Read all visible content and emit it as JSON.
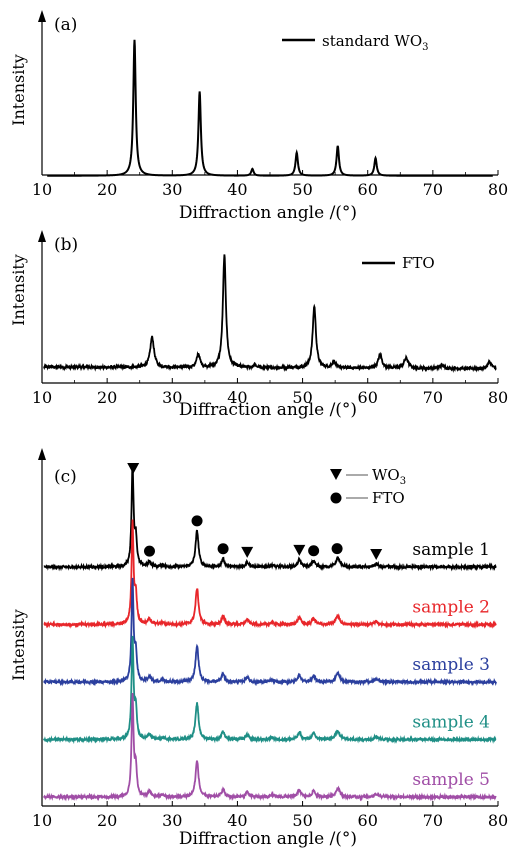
{
  "chart_data": [
    {
      "type": "line",
      "panel_label": "(a)",
      "ylabel": "Intensity",
      "xlabel": "Diffraction angle /(°)",
      "xlim": [
        10,
        80
      ],
      "xticks": [
        10,
        20,
        30,
        40,
        50,
        60,
        70,
        80
      ],
      "legend": {
        "label_prefix": "standard WO",
        "label_sub": "3",
        "placement": "top-right"
      },
      "series": [
        {
          "color": "#000000",
          "baseline": 0.05,
          "noise": 0,
          "peaks": [
            {
              "x": 24.2,
              "h": 1.0,
              "w": 0.22
            },
            {
              "x": 34.2,
              "h": 0.62,
              "w": 0.22
            },
            {
              "x": 42.3,
              "h": 0.05,
              "w": 0.22
            },
            {
              "x": 49.1,
              "h": 0.17,
              "w": 0.22
            },
            {
              "x": 55.4,
              "h": 0.22,
              "w": 0.22
            },
            {
              "x": 61.2,
              "h": 0.13,
              "w": 0.22
            }
          ]
        }
      ]
    },
    {
      "type": "line",
      "panel_label": "(b)",
      "ylabel": "Intensity",
      "xlabel": "Diffraction angle /(°)",
      "xlim": [
        10,
        80
      ],
      "xticks": [
        10,
        20,
        30,
        40,
        50,
        60,
        70,
        80
      ],
      "legend": {
        "label_prefix": "FTO",
        "label_sub": "",
        "placement": "top-right"
      },
      "series": [
        {
          "color": "#000000",
          "baseline": 0.05,
          "noise": 0.012,
          "slope": -0.015,
          "peaks": [
            {
              "x": 26.9,
              "h": 0.27,
              "w": 0.35
            },
            {
              "x": 34.0,
              "h": 0.12,
              "w": 0.3
            },
            {
              "x": 38.0,
              "h": 1.0,
              "w": 0.28
            },
            {
              "x": 42.7,
              "h": 0.02,
              "w": 0.3
            },
            {
              "x": 51.8,
              "h": 0.55,
              "w": 0.3
            },
            {
              "x": 54.8,
              "h": 0.06,
              "w": 0.3
            },
            {
              "x": 61.9,
              "h": 0.12,
              "w": 0.35
            },
            {
              "x": 65.9,
              "h": 0.09,
              "w": 0.4
            },
            {
              "x": 71.4,
              "h": 0.03,
              "w": 0.35
            },
            {
              "x": 78.7,
              "h": 0.06,
              "w": 0.35
            }
          ]
        }
      ]
    },
    {
      "type": "line",
      "panel_label": "(c)",
      "ylabel": "Intensity",
      "xlabel": "Diffraction angle /(°)",
      "xlim": [
        10,
        80
      ],
      "xticks": [
        10,
        20,
        30,
        40,
        50,
        60,
        70,
        80
      ],
      "marker_legend": [
        {
          "shape": "triangle",
          "label_prefix": "WO",
          "label_sub": "3"
        },
        {
          "shape": "circle",
          "label_prefix": "FTO",
          "label_sub": ""
        }
      ],
      "markers": [
        {
          "shape": "triangle",
          "x": 24.0
        },
        {
          "shape": "triangle",
          "x": 41.5
        },
        {
          "shape": "triangle",
          "x": 49.5
        },
        {
          "shape": "triangle",
          "x": 61.3
        },
        {
          "shape": "circle",
          "x": 26.5
        },
        {
          "shape": "circle",
          "x": 33.8
        },
        {
          "shape": "circle",
          "x": 37.8
        },
        {
          "shape": "circle",
          "x": 51.7
        },
        {
          "shape": "circle",
          "x": 55.3
        }
      ],
      "series": [
        {
          "name": "sample 1",
          "color": "#000000",
          "offset": 4,
          "peakscale": 1.0
        },
        {
          "name": "sample 2",
          "color": "#e8262a",
          "offset": 3,
          "peakscale": 1.0
        },
        {
          "name": "sample 3",
          "color": "#2b3f9e",
          "offset": 2,
          "peakscale": 1.0
        },
        {
          "name": "sample 4",
          "color": "#1f8f86",
          "offset": 1,
          "peakscale": 1.0
        },
        {
          "name": "sample 5",
          "color": "#a04ea6",
          "offset": 0,
          "peakscale": 1.0
        }
      ],
      "common_peaks": [
        {
          "x": 23.9,
          "h": 1.0,
          "w": 0.18
        },
        {
          "x": 24.4,
          "h": 0.28,
          "w": 0.2
        },
        {
          "x": 26.5,
          "h": 0.05,
          "w": 0.3
        },
        {
          "x": 28.5,
          "h": 0.02,
          "w": 0.3
        },
        {
          "x": 33.8,
          "h": 0.36,
          "w": 0.28
        },
        {
          "x": 37.8,
          "h": 0.08,
          "w": 0.28
        },
        {
          "x": 41.5,
          "h": 0.05,
          "w": 0.28
        },
        {
          "x": 45.3,
          "h": 0.02,
          "w": 0.3
        },
        {
          "x": 49.5,
          "h": 0.07,
          "w": 0.3
        },
        {
          "x": 51.7,
          "h": 0.06,
          "w": 0.3
        },
        {
          "x": 55.4,
          "h": 0.09,
          "w": 0.35
        },
        {
          "x": 61.3,
          "h": 0.03,
          "w": 0.35
        }
      ]
    }
  ]
}
